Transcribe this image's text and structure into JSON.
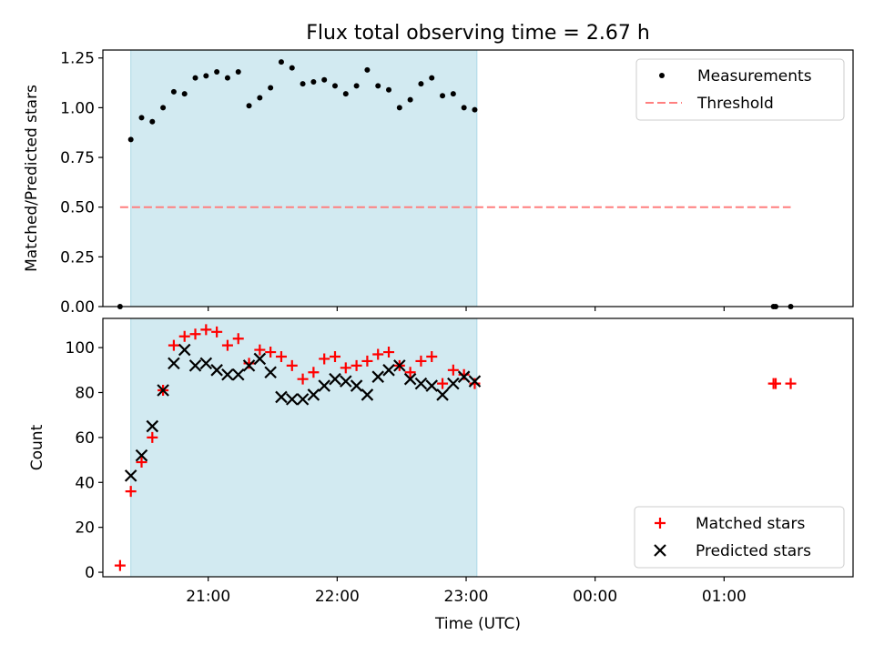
{
  "title": "Flux total observing time = 2.67 h",
  "colors": {
    "span": "#add8e6",
    "measurement": "#000000",
    "threshold": "#ff7f7f",
    "matched": "#ff0000",
    "predicted": "#000000"
  },
  "chart_data": [
    {
      "type": "scatter",
      "panel": "top",
      "xlabel": "",
      "ylabel": "Matched/Predicted stars",
      "xlim": [
        "20:11",
        "02:00"
      ],
      "ylim": [
        0,
        1.29
      ],
      "yticks": [
        "0.00",
        "0.25",
        "0.50",
        "0.75",
        "1.00",
        "1.25"
      ],
      "grid": false,
      "legend_position": "top-right",
      "shaded_span": [
        "20:24",
        "23:05"
      ],
      "series": [
        {
          "name": "Measurements",
          "marker": "dot",
          "points": [
            [
              "20:19",
              0.0
            ],
            [
              "20:24",
              0.84
            ],
            [
              "20:29",
              0.95
            ],
            [
              "20:34",
              0.93
            ],
            [
              "20:39",
              1.0
            ],
            [
              "20:44",
              1.08
            ],
            [
              "20:49",
              1.07
            ],
            [
              "20:54",
              1.15
            ],
            [
              "20:59",
              1.16
            ],
            [
              "21:04",
              1.18
            ],
            [
              "21:09",
              1.15
            ],
            [
              "21:14",
              1.18
            ],
            [
              "21:19",
              1.01
            ],
            [
              "21:24",
              1.05
            ],
            [
              "21:29",
              1.1
            ],
            [
              "21:34",
              1.23
            ],
            [
              "21:39",
              1.2
            ],
            [
              "21:44",
              1.12
            ],
            [
              "21:49",
              1.13
            ],
            [
              "21:54",
              1.14
            ],
            [
              "21:59",
              1.11
            ],
            [
              "22:04",
              1.07
            ],
            [
              "22:09",
              1.11
            ],
            [
              "22:14",
              1.19
            ],
            [
              "22:19",
              1.11
            ],
            [
              "22:24",
              1.09
            ],
            [
              "22:29",
              1.0
            ],
            [
              "22:34",
              1.04
            ],
            [
              "22:39",
              1.12
            ],
            [
              "22:44",
              1.15
            ],
            [
              "22:49",
              1.06
            ],
            [
              "22:54",
              1.07
            ],
            [
              "22:59",
              1.0
            ],
            [
              "23:04",
              0.99
            ],
            [
              "01:23",
              0.0
            ],
            [
              "01:24",
              0.0
            ],
            [
              "01:31",
              0.0
            ]
          ]
        },
        {
          "name": "Threshold",
          "style": "dashed",
          "points": [
            [
              "20:19",
              0.5
            ],
            [
              "01:31",
              0.5
            ]
          ]
        }
      ]
    },
    {
      "type": "scatter",
      "panel": "bottom",
      "xlabel": "Time (UTC)",
      "ylabel": "Count",
      "xlim": [
        "20:11",
        "02:00"
      ],
      "ylim": [
        -2,
        113
      ],
      "xticks": [
        "21:00",
        "22:00",
        "23:00",
        "00:00",
        "01:00"
      ],
      "yticks": [
        "0",
        "20",
        "40",
        "60",
        "80",
        "100"
      ],
      "grid": false,
      "legend_position": "bottom-right",
      "shaded_span": [
        "20:24",
        "23:05"
      ],
      "series": [
        {
          "name": "Matched stars",
          "marker": "plus",
          "points": [
            [
              "20:19",
              3
            ],
            [
              "20:24",
              36
            ],
            [
              "20:29",
              49
            ],
            [
              "20:34",
              60
            ],
            [
              "20:39",
              81
            ],
            [
              "20:44",
              101
            ],
            [
              "20:49",
              105
            ],
            [
              "20:54",
              106
            ],
            [
              "20:59",
              108
            ],
            [
              "21:04",
              107
            ],
            [
              "21:09",
              101
            ],
            [
              "21:14",
              104
            ],
            [
              "21:19",
              93
            ],
            [
              "21:24",
              99
            ],
            [
              "21:29",
              98
            ],
            [
              "21:34",
              96
            ],
            [
              "21:39",
              92
            ],
            [
              "21:44",
              86
            ],
            [
              "21:49",
              89
            ],
            [
              "21:54",
              95
            ],
            [
              "21:59",
              96
            ],
            [
              "22:04",
              91
            ],
            [
              "22:09",
              92
            ],
            [
              "22:14",
              94
            ],
            [
              "22:19",
              97
            ],
            [
              "22:24",
              98
            ],
            [
              "22:29",
              92
            ],
            [
              "22:34",
              89
            ],
            [
              "22:39",
              94
            ],
            [
              "22:44",
              96
            ],
            [
              "22:49",
              84
            ],
            [
              "22:54",
              90
            ],
            [
              "22:59",
              88
            ],
            [
              "23:04",
              84
            ],
            [
              "01:23",
              84
            ],
            [
              "01:24",
              84
            ],
            [
              "01:31",
              84
            ]
          ]
        },
        {
          "name": "Predicted stars",
          "marker": "x",
          "points": [
            [
              "20:24",
              43
            ],
            [
              "20:29",
              52
            ],
            [
              "20:34",
              65
            ],
            [
              "20:39",
              81
            ],
            [
              "20:44",
              93
            ],
            [
              "20:49",
              99
            ],
            [
              "20:54",
              92
            ],
            [
              "20:59",
              93
            ],
            [
              "21:04",
              90
            ],
            [
              "21:09",
              88
            ],
            [
              "21:14",
              88
            ],
            [
              "21:19",
              92
            ],
            [
              "21:24",
              95
            ],
            [
              "21:29",
              89
            ],
            [
              "21:34",
              78
            ],
            [
              "21:39",
              77
            ],
            [
              "21:44",
              77
            ],
            [
              "21:49",
              79
            ],
            [
              "21:54",
              83
            ],
            [
              "21:59",
              86
            ],
            [
              "22:04",
              85
            ],
            [
              "22:09",
              83
            ],
            [
              "22:14",
              79
            ],
            [
              "22:19",
              87
            ],
            [
              "22:24",
              90
            ],
            [
              "22:29",
              92
            ],
            [
              "22:34",
              86
            ],
            [
              "22:39",
              84
            ],
            [
              "22:44",
              83
            ],
            [
              "22:49",
              79
            ],
            [
              "22:54",
              84
            ],
            [
              "22:59",
              87
            ],
            [
              "23:04",
              85
            ]
          ]
        }
      ]
    }
  ]
}
